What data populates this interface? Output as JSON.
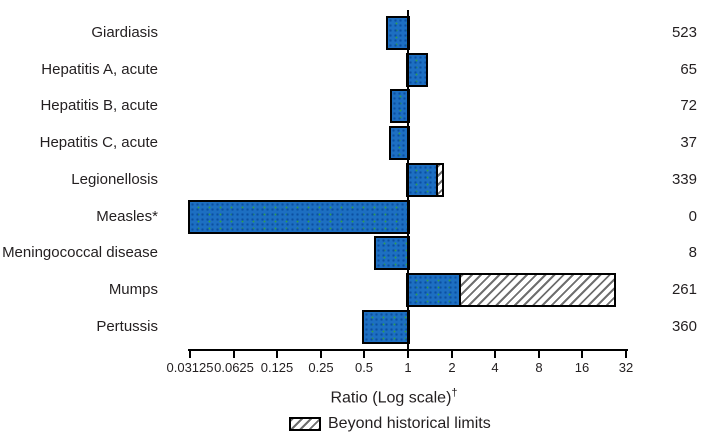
{
  "figure": {
    "colors": {
      "bar_fill": "#1d6fc2",
      "bar_fill_dot": "#0b4fa0",
      "bar_fill_speck": "#2f9a55",
      "hatch_stripe": "#6f6f6f",
      "axis": "#000000",
      "text": "#231f20"
    }
  },
  "chart_data": {
    "type": "bar",
    "orientation": "horizontal",
    "scale": "log2",
    "title": "",
    "xlabel": "Ratio (Log scale)",
    "xlabel_sup": "†",
    "xlim": [
      0.03125,
      32
    ],
    "reference_value": 1,
    "x_tick_labels": [
      "0.03125",
      "0.0625",
      "0.125",
      "0.25",
      "0.5",
      "1",
      "2",
      "4",
      "8",
      "16",
      "32"
    ],
    "grid": false,
    "legend_label": "Beyond historical limits",
    "legend_position": "bottom",
    "rows": [
      {
        "disease": "Giardiasis",
        "ratio": 0.73,
        "beyond_from": null,
        "count": 523,
        "clipped_at_axis_min": false
      },
      {
        "disease": "Hepatitis A, acute",
        "ratio": 1.34,
        "beyond_from": null,
        "count": 65,
        "clipped_at_axis_min": false
      },
      {
        "disease": "Hepatitis B, acute",
        "ratio": 0.77,
        "beyond_from": null,
        "count": 72,
        "clipped_at_axis_min": false
      },
      {
        "disease": "Hepatitis C, acute",
        "ratio": 0.76,
        "beyond_from": null,
        "count": 37,
        "clipped_at_axis_min": false
      },
      {
        "disease": "Legionellosis",
        "ratio": 1.72,
        "beyond_from": 1.56,
        "count": 339,
        "clipped_at_axis_min": false
      },
      {
        "disease": "Measles*",
        "ratio": 0.03125,
        "beyond_from": null,
        "count": 0,
        "clipped_at_axis_min": true
      },
      {
        "disease": "Meningococcal disease",
        "ratio": 0.6,
        "beyond_from": null,
        "count": 8,
        "clipped_at_axis_min": false
      },
      {
        "disease": "Mumps",
        "ratio": 26.6,
        "beyond_from": 2.25,
        "count": 261,
        "clipped_at_axis_min": false
      },
      {
        "disease": "Pertussis",
        "ratio": 0.5,
        "beyond_from": null,
        "count": 360,
        "clipped_at_axis_min": false
      }
    ]
  }
}
